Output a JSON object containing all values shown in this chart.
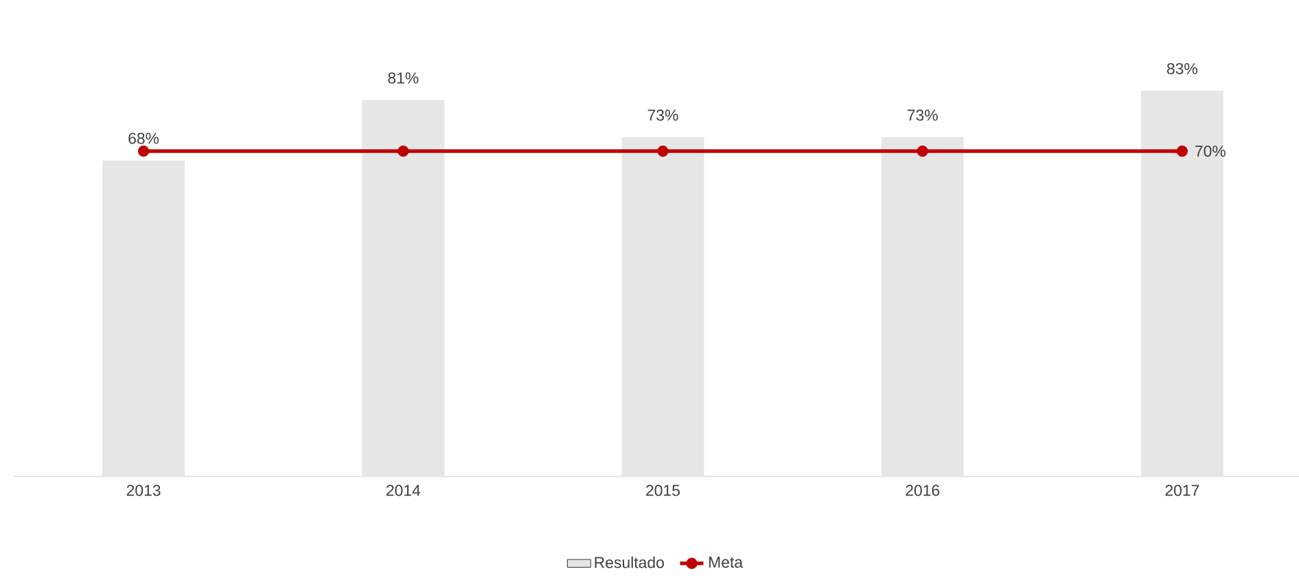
{
  "chart_data": {
    "type": "bar",
    "categories": [
      "2013",
      "2014",
      "2015",
      "2016",
      "2017"
    ],
    "series": [
      {
        "name": "Resultado",
        "color": "#e6e6e6",
        "values": [
          68,
          81,
          73,
          73,
          83
        ],
        "value_labels": [
          "68%",
          "81%",
          "73%",
          "73%",
          "83%"
        ]
      },
      {
        "name": "Meta",
        "type": "line",
        "color": "#c00000",
        "marker": "circle",
        "values": [
          70,
          70,
          70,
          70,
          70
        ],
        "value_labels": [
          null,
          null,
          null,
          null,
          "70%"
        ]
      }
    ],
    "tick_labels": "x",
    "legend": "bottom",
    "grid": false
  }
}
